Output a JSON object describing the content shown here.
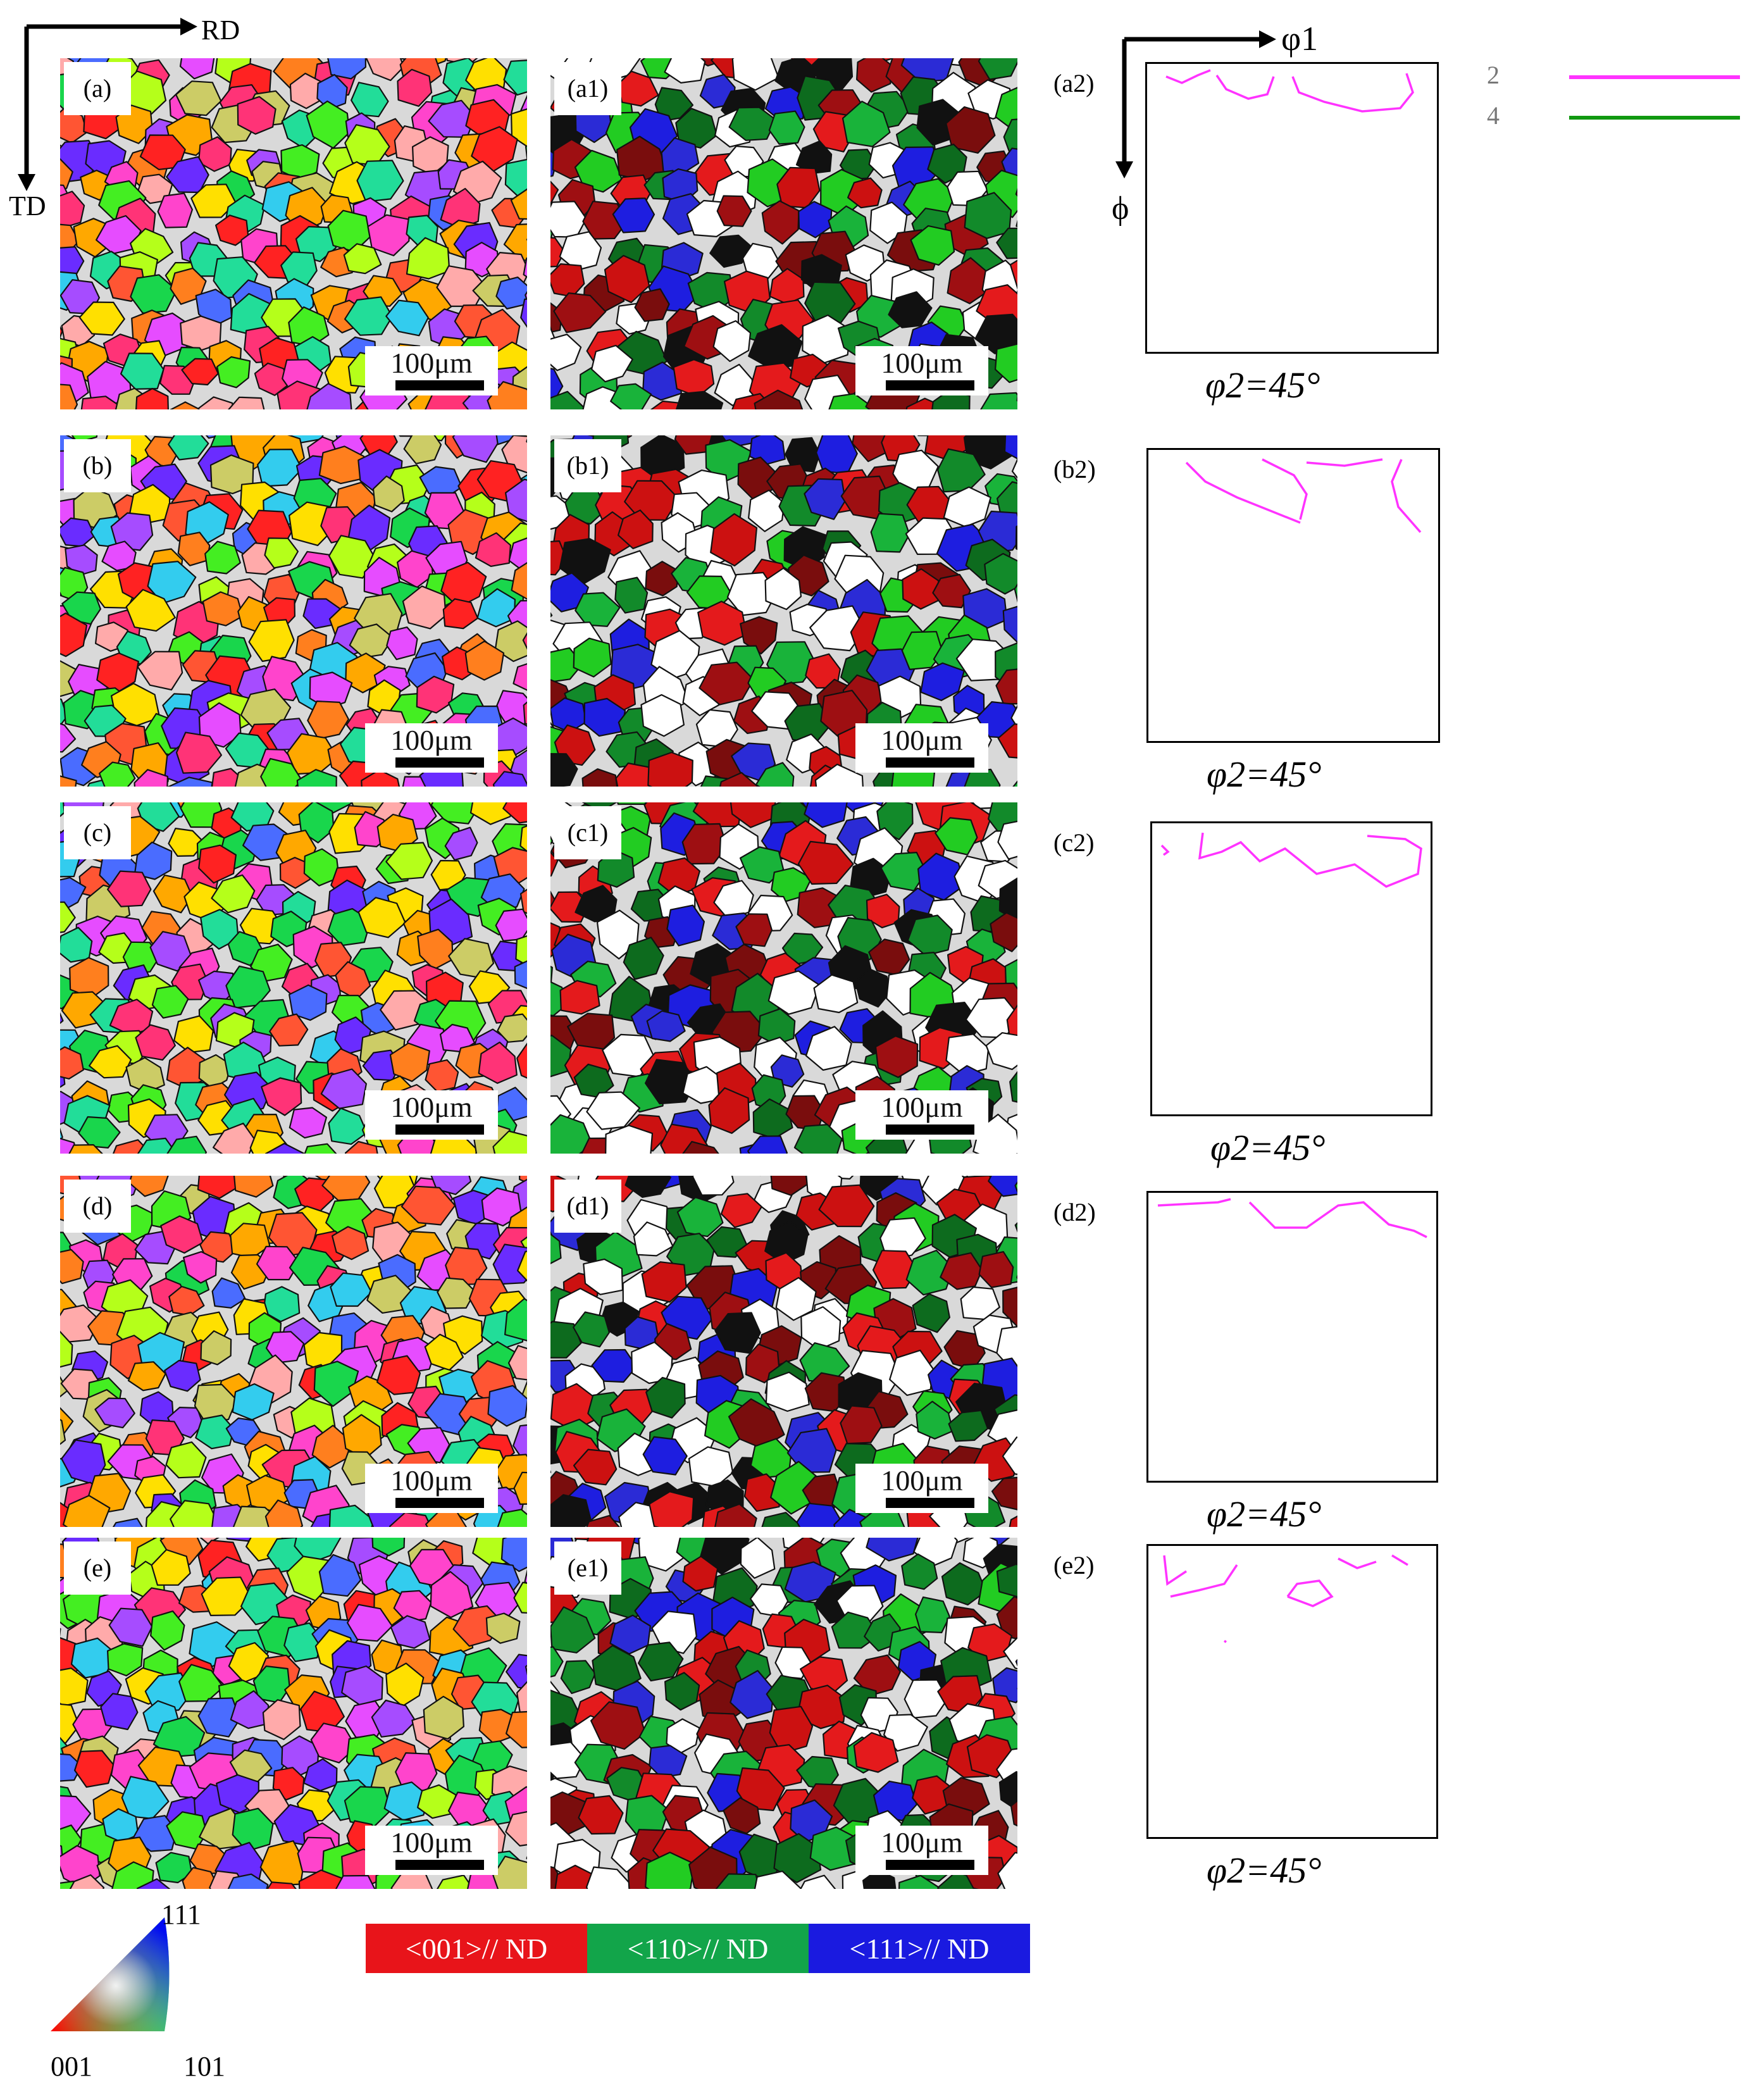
{
  "coordinate_axes": {
    "rd": "RD",
    "td": "TD"
  },
  "odf_axes": {
    "phi1": "φ1",
    "phi": "ϕ"
  },
  "odf_legend": [
    {
      "label": "2",
      "color": "#ff33ff"
    },
    {
      "label": "4",
      "color": "#119911"
    }
  ],
  "rows": [
    {
      "ipf_label": "(a)",
      "texture_label": "(a1)",
      "odf_label": "(a2)",
      "scale_text": "100μm",
      "odf_section": "φ2=45°"
    },
    {
      "ipf_label": "(b)",
      "texture_label": "(b1)",
      "odf_label": "(b2)",
      "scale_text": "100μm",
      "odf_section": "φ2=45°"
    },
    {
      "ipf_label": "(c)",
      "texture_label": "(c1)",
      "odf_label": "(c2)",
      "scale_text": "100μm",
      "odf_section": "φ2=45°"
    },
    {
      "ipf_label": "(d)",
      "texture_label": "(d1)",
      "odf_label": "(d2)",
      "scale_text": "100μm",
      "odf_section": "φ2=45°"
    },
    {
      "ipf_label": "(e)",
      "texture_label": "(e1)",
      "odf_label": "(e2)",
      "scale_text": "100μm",
      "odf_section": "φ2=45°"
    }
  ],
  "texture_legend": [
    {
      "label": "<001>// ND",
      "color": "#e8141a"
    },
    {
      "label": "<110>// ND",
      "color": "#12a54a"
    },
    {
      "label": "<111>// ND",
      "color": "#1a1ae0"
    }
  ],
  "ipf_key": {
    "top": "111",
    "left": "001",
    "right": "101"
  },
  "colors": {
    "ipf_palette": [
      "#ff2222",
      "#ff5533",
      "#ff7f1e",
      "#ffa800",
      "#ffe000",
      "#b5ff1a",
      "#44ee22",
      "#19d64c",
      "#22dd99",
      "#33ccee",
      "#4a6cff",
      "#6a2cff",
      "#a64cff",
      "#e64cff",
      "#ff44cc",
      "#ff3377",
      "#ffaaaa",
      "#cccc66"
    ],
    "texture_palette": [
      "#ffffff",
      "#ffffff",
      "#ffffff",
      "#e41a1c",
      "#cc1111",
      "#9e0f12",
      "#7a0d0d",
      "#22cc22",
      "#19b33a",
      "#128a2a",
      "#0d6b1e",
      "#1e1ee0",
      "#2b2bd6",
      "#111111"
    ],
    "odf_line": "#ff33ff"
  }
}
